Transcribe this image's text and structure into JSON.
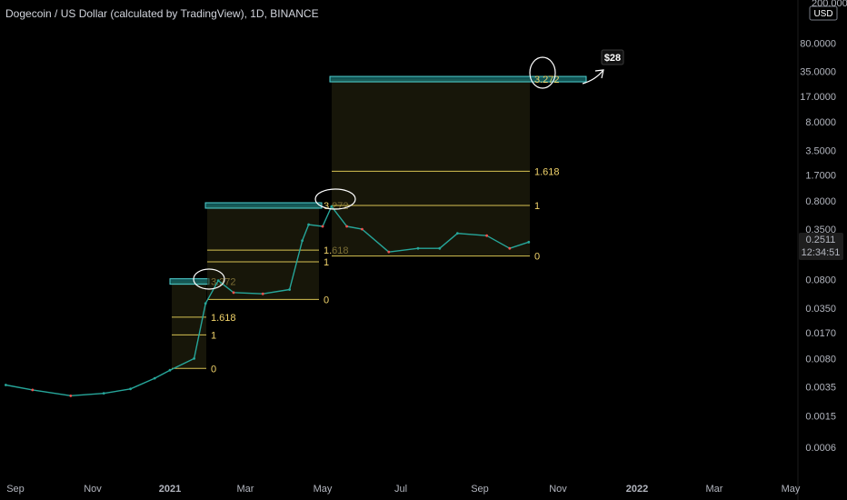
{
  "header": {
    "title": "Dogecoin / US Dollar (calculated by TradingView), 1D, BINANCE"
  },
  "chart_data": {
    "type": "line",
    "title": "Dogecoin / US Dollar (calculated by TradingView), 1D, BINANCE",
    "y_scale": "log",
    "currency": "USD",
    "ylim": [
      0.0004,
      250
    ],
    "y_ticks": [
      "200.0000",
      "80.0000",
      "35.0000",
      "17.0000",
      "8.0000",
      "3.5000",
      "1.7000",
      "0.8000",
      "0.3500",
      "0.1700",
      "0.0800",
      "0.0350",
      "0.0170",
      "0.0080",
      "0.0035",
      "0.0015",
      "0.0006"
    ],
    "x_ticks": [
      "Sep",
      "Nov",
      "2021",
      "Mar",
      "May",
      "Jul",
      "Sep",
      "Nov",
      "2022",
      "Mar",
      "May"
    ],
    "last_price": {
      "value": "0.2511",
      "countdown": "12:34:51"
    },
    "series": [
      {
        "values": [
          [
            "2020-08-25",
            0.0037
          ],
          [
            "2020-09-15",
            0.0032
          ],
          [
            "2020-10-15",
            0.0027
          ],
          [
            "2020-11-10",
            0.0029
          ],
          [
            "2020-12-01",
            0.0033
          ],
          [
            "2020-12-20",
            0.0045
          ],
          [
            "2021-01-01",
            0.0057
          ],
          [
            "2021-01-20",
            0.008
          ],
          [
            "2021-01-29",
            0.04
          ],
          [
            "2021-02-08",
            0.078
          ],
          [
            "2021-02-20",
            0.055
          ],
          [
            "2021-03-15",
            0.053
          ],
          [
            "2021-04-05",
            0.06
          ],
          [
            "2021-04-15",
            0.25
          ],
          [
            "2021-04-20",
            0.4
          ],
          [
            "2021-05-01",
            0.38
          ],
          [
            "2021-05-08",
            0.68
          ],
          [
            "2021-05-20",
            0.38
          ],
          [
            "2021-06-01",
            0.35
          ],
          [
            "2021-06-22",
            0.18
          ],
          [
            "2021-07-15",
            0.2
          ],
          [
            "2021-08-01",
            0.2
          ],
          [
            "2021-08-15",
            0.31
          ],
          [
            "2021-09-07",
            0.29
          ],
          [
            "2021-09-25",
            0.2
          ],
          [
            "2021-10-10",
            0.24
          ]
        ]
      }
    ],
    "fib_extensions": [
      {
        "levels": [
          {
            "label": "0",
            "value": 0.006
          },
          {
            "label": "1",
            "value": 0.016
          },
          {
            "label": "1.618",
            "value": 0.0268
          },
          {
            "label": "3.272",
            "value": 0.076
          }
        ]
      },
      {
        "levels": [
          {
            "label": "0",
            "value": 0.045
          },
          {
            "label": "1",
            "value": 0.135
          },
          {
            "label": "1.618",
            "value": 0.19
          },
          {
            "label": "3.272",
            "value": 0.7
          }
        ]
      },
      {
        "levels": [
          {
            "label": "0",
            "value": 0.16
          },
          {
            "label": "1",
            "value": 0.7
          },
          {
            "label": "1.618",
            "value": 1.9
          },
          {
            "label": "3.272",
            "value": 28.0
          }
        ]
      }
    ],
    "annotation": {
      "text": "$28"
    }
  }
}
